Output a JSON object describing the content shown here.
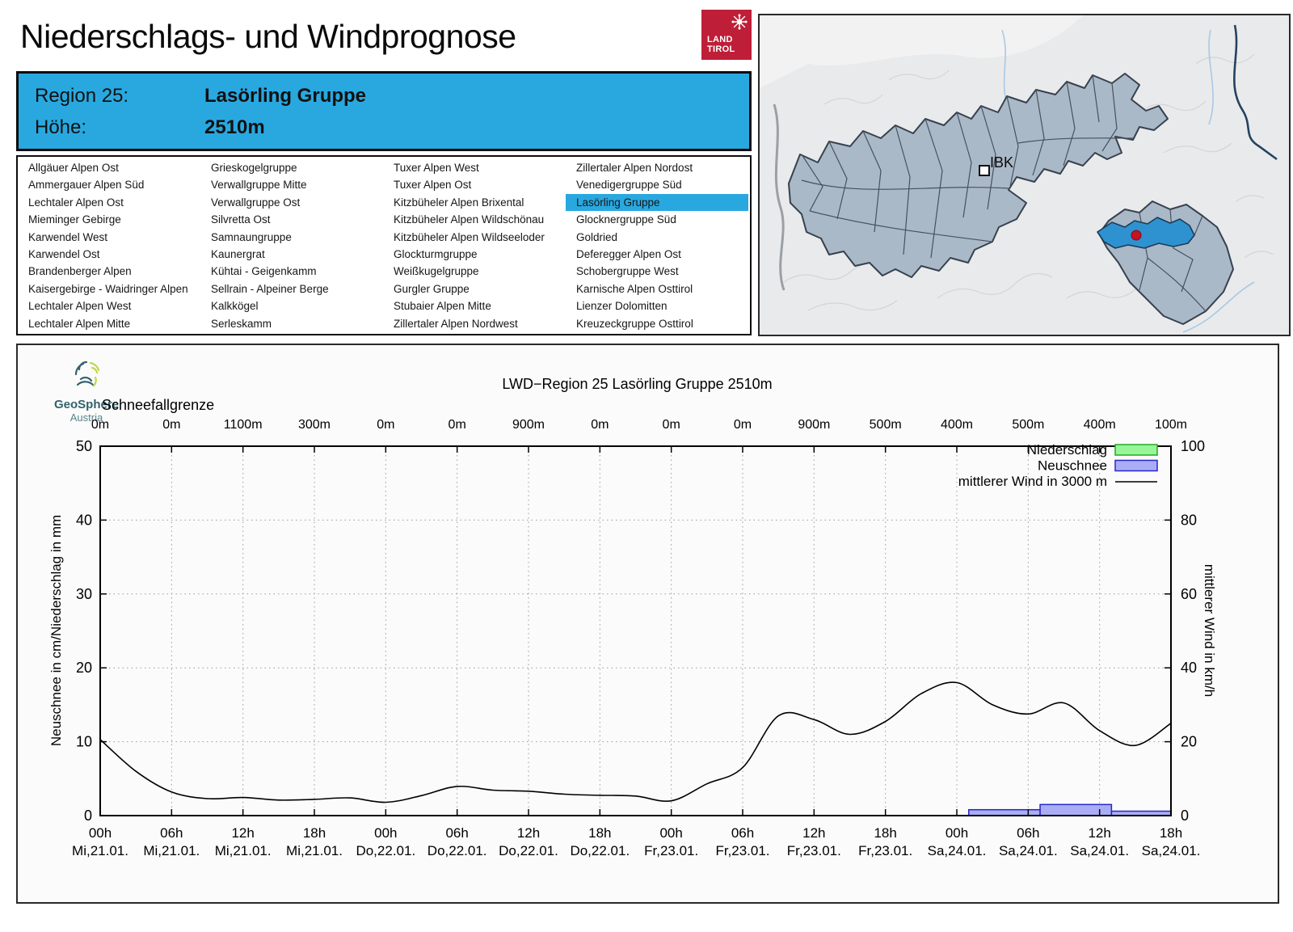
{
  "header": {
    "title": "Niederschlags- und Windprognose",
    "logo_line1": "LAND",
    "logo_line2": "TIROL"
  },
  "region_box": {
    "region_label": "Region 25:",
    "region_name": "Lasörling Gruppe",
    "altitude_label": "Höhe:",
    "altitude_value": "2510m"
  },
  "region_list": {
    "selected": "Lasörling Gruppe",
    "columns": [
      [
        "Allgäuer Alpen Ost",
        "Ammergauer Alpen Süd",
        "Lechtaler Alpen Ost",
        "Mieminger Gebirge",
        "Karwendel West",
        "Karwendel Ost",
        "Brandenberger Alpen",
        "Kaisergebirge - Waidringer Alpen",
        "Lechtaler Alpen West",
        "Lechtaler Alpen Mitte"
      ],
      [
        "Grieskogelgruppe",
        "Verwallgruppe Mitte",
        "Verwallgruppe Ost",
        "Silvretta Ost",
        "Samnaungruppe",
        "Kaunergrat",
        "Kühtai - Geigenkamm",
        "Sellrain - Alpeiner Berge",
        "Kalkkögel",
        "Serleskamm"
      ],
      [
        "Tuxer Alpen West",
        "Tuxer Alpen Ost",
        "Kitzbüheler Alpen Brixental",
        "Kitzbüheler Alpen Wildschönau",
        "Kitzbüheler Alpen Wildseeloder",
        "Glockturmgruppe",
        "Weißkugelgruppe",
        "Gurgler Gruppe",
        "Stubaier Alpen Mitte",
        "Zillertaler Alpen Nordwest"
      ],
      [
        "Zillertaler Alpen Nordost",
        "Venedigergruppe Süd",
        "Lasörling Gruppe",
        "Glocknergruppe Süd",
        "Goldried",
        "Deferegger Alpen Ost",
        "Schobergruppe West",
        "Karnische Alpen Osttirol",
        "Lienzer Dolomitten",
        "Kreuzeckgruppe Osttirol"
      ]
    ]
  },
  "map": {
    "city_label": "IBK",
    "colors": {
      "region_fill": "#aab9c8",
      "region_border": "#37414e",
      "highlight": "#2f92d0",
      "marker_red": "#c41322"
    }
  },
  "geosphere": {
    "name": "GeoSphere",
    "sub": "Austria"
  },
  "chart_data": {
    "type": "line",
    "title": "LWD−Region 25 Lasörling Gruppe 2510m",
    "ylabel_left": "Neuschnee in cm/Niederschlag in mm",
    "ylabel_right": "mittlerer Wind in km/h",
    "ylim_left": [
      0,
      50
    ],
    "ylim_right": [
      0,
      100
    ],
    "yticks_left": [
      0,
      10,
      20,
      30,
      40,
      50
    ],
    "yticks_right": [
      0,
      20,
      40,
      60,
      80,
      100
    ],
    "grid": "dotted, vertical every 6h, horizontal every 10 (left axis)",
    "schneefallgrenze": {
      "label": "Schneefallgrenze",
      "values": [
        "0m",
        "0m",
        "1100m",
        "300m",
        "0m",
        "0m",
        "900m",
        "0m",
        "0m",
        "0m",
        "900m",
        "500m",
        "400m",
        "500m",
        "400m",
        "100m"
      ]
    },
    "x_ticks": {
      "hours": [
        "00h",
        "06h",
        "12h",
        "18h",
        "00h",
        "06h",
        "12h",
        "18h",
        "00h",
        "06h",
        "12h",
        "18h",
        "00h",
        "06h",
        "12h",
        "18h"
      ],
      "dates": [
        "Mi,21.01.",
        "Mi,21.01.",
        "Mi,21.01.",
        "Mi,21.01.",
        "Do,22.01.",
        "Do,22.01.",
        "Do,22.01.",
        "Do,22.01.",
        "Fr,23.01.",
        "Fr,23.01.",
        "Fr,23.01.",
        "Fr,23.01.",
        "Sa,24.01.",
        "Sa,24.01.",
        "Sa,24.01.",
        "Sa,24.01."
      ],
      "span_hours": 90
    },
    "legend": {
      "position": "top-right inside plot",
      "entries": [
        {
          "label": "Niederschlag",
          "type": "box",
          "fill": "#98f598",
          "border": "#22aa22"
        },
        {
          "label": "Neuschnee",
          "type": "box",
          "fill": "#a9adf4",
          "border": "#2727cc"
        },
        {
          "label": "mittlerer Wind in 3000 m",
          "type": "line",
          "color": "#000000"
        }
      ]
    },
    "series": [
      {
        "name": "mittlerer Wind in 3000 m",
        "axis": "right",
        "unit": "km/h",
        "start": "Mi,21.01. 00h",
        "step_hours": 3,
        "values": [
          20.6,
          12,
          6.4,
          4.6,
          4.9,
          4.2,
          4.4,
          4.8,
          3.6,
          5.4,
          7.9,
          6.9,
          6.6,
          5.8,
          5.5,
          5.3,
          4.0,
          8.6,
          13,
          27,
          26,
          22,
          25.5,
          33,
          36,
          30,
          27.5,
          30.5,
          23,
          19,
          25
        ]
      },
      {
        "name": "Neuschnee",
        "axis": "left",
        "unit": "cm",
        "type": "bars",
        "bars": [
          {
            "from_hour": 73,
            "to_hour": 79,
            "period": "Sa,24.01. 01h-07h",
            "value_cm": 0.8
          },
          {
            "from_hour": 79,
            "to_hour": 85,
            "period": "Sa,24.01. 07h-13h",
            "value_cm": 1.5
          },
          {
            "from_hour": 85,
            "to_hour": 90,
            "period": "Sa,24.01. 13h-18h",
            "value_cm": 0.6
          }
        ]
      },
      {
        "name": "Niederschlag",
        "axis": "left",
        "unit": "mm",
        "type": "bars",
        "bars": []
      }
    ]
  }
}
